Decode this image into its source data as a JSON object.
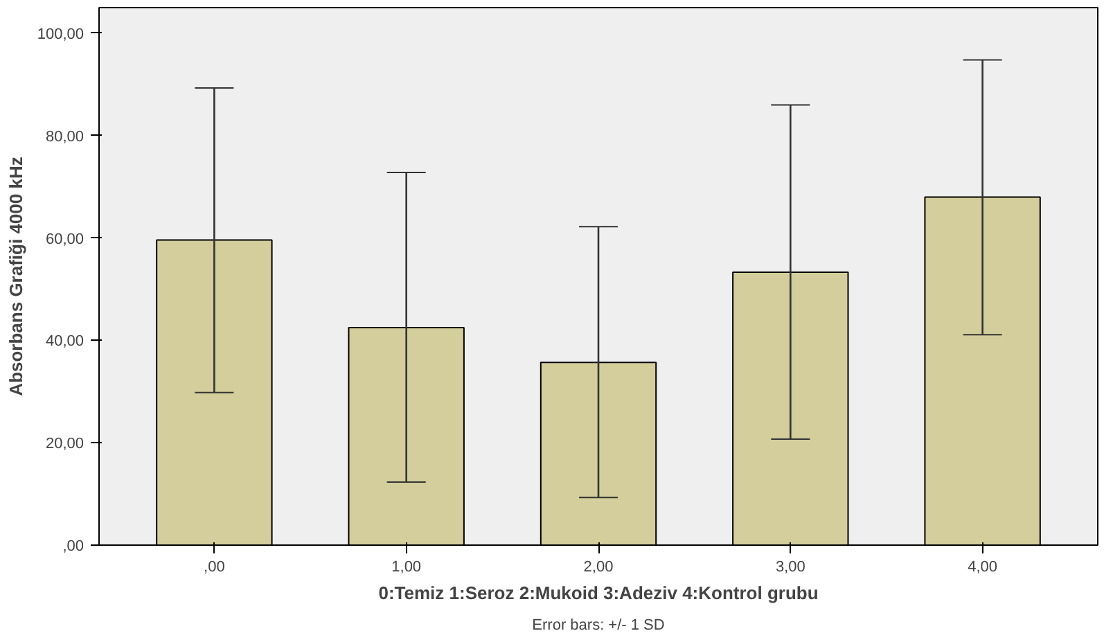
{
  "chart_data": {
    "type": "bar",
    "xlabel": "0:Temiz 1:Seroz 2:Mukoid 3:Adeziv 4:Kontrol grubu",
    "ylabel": "Absorbans Grafiği 4000 kHz",
    "categories": [
      ",00",
      "1,00",
      "2,00",
      "3,00",
      "4,00"
    ],
    "values": [
      59.6,
      42.5,
      35.7,
      53.3,
      68.0
    ],
    "color": "#d3ce9b",
    "errors": [
      [
        29.8,
        89.3
      ],
      [
        12.3,
        72.8
      ],
      [
        9.3,
        62.2
      ],
      [
        20.7,
        86.0
      ],
      [
        41.1,
        94.8
      ]
    ],
    "ylim": [
      0,
      105
    ],
    "yticks": [
      {
        "value": 0,
        "label": ",00"
      },
      {
        "value": 20,
        "label": "20,00"
      },
      {
        "value": 40,
        "label": "40,00"
      },
      {
        "value": 60,
        "label": "60,00"
      },
      {
        "value": 80,
        "label": "80,00"
      },
      {
        "value": 100,
        "label": "100,00"
      }
    ],
    "grid": false,
    "annotations": [
      "Error bars: +/- 1 SD"
    ]
  }
}
